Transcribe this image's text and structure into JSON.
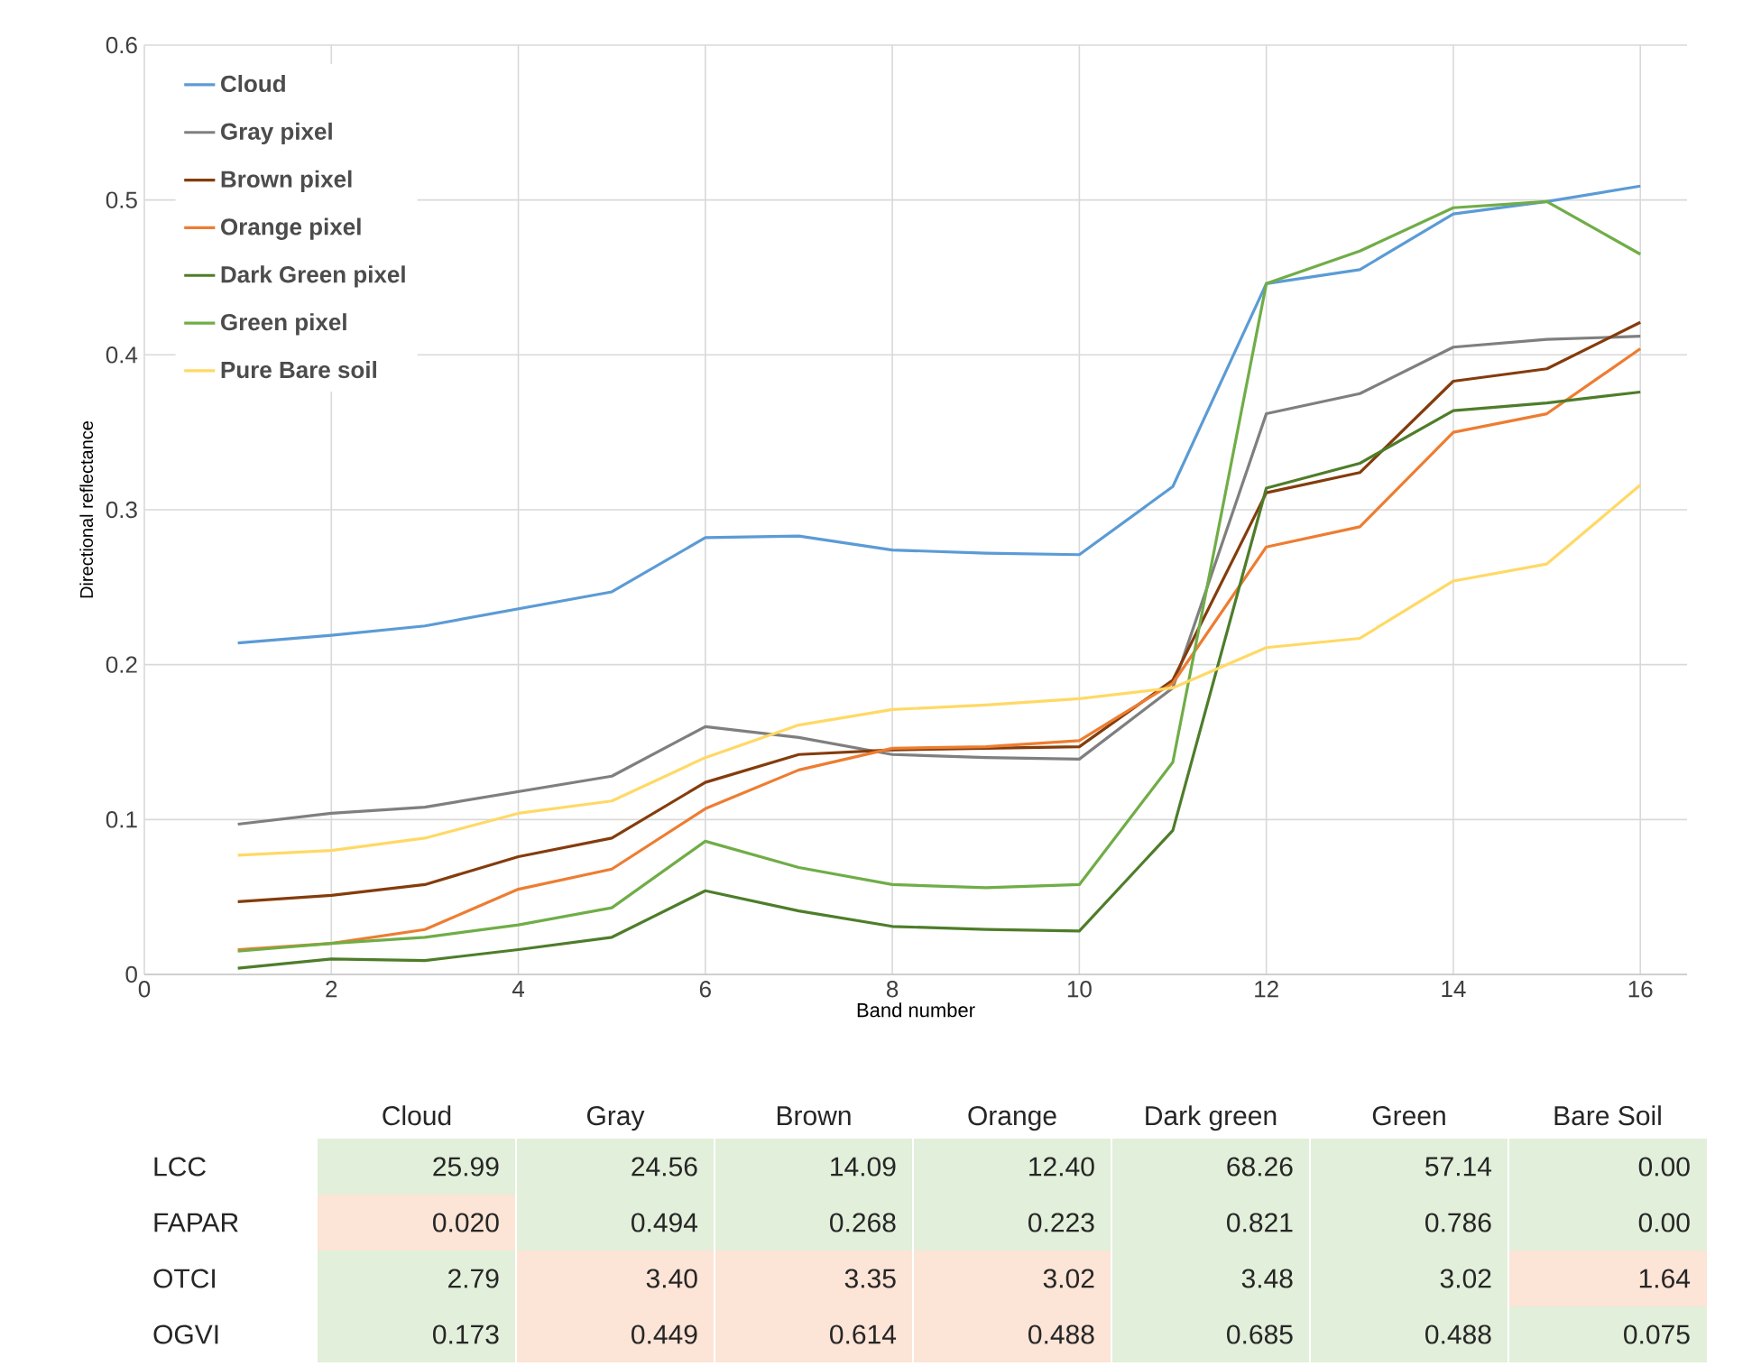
{
  "chart_data": [
    {
      "type": "line",
      "xlabel": "Band number",
      "ylabel": "Directional reflectance",
      "x": [
        1,
        2,
        3,
        4,
        5,
        6,
        7,
        8,
        9,
        10,
        11,
        12,
        13,
        14,
        15,
        16
      ],
      "xlim": [
        0,
        16.5
      ],
      "xticks": [
        0,
        2,
        4,
        6,
        8,
        10,
        12,
        14,
        16
      ],
      "ylim": [
        0,
        0.6
      ],
      "yticks": [
        0,
        0.1,
        0.2,
        0.3,
        0.4,
        0.5,
        0.6
      ],
      "grid": true,
      "legend": "top left",
      "marker": "none",
      "line_style": "solid",
      "series": [
        {
          "name": "Cloud",
          "color": "#5b9bd5",
          "values": [
            0.214,
            0.219,
            0.225,
            0.236,
            0.247,
            0.282,
            0.283,
            0.274,
            0.272,
            0.271,
            0.315,
            0.446,
            0.455,
            0.491,
            0.499,
            0.509
          ]
        },
        {
          "name": "Gray pixel",
          "color": "#7f7f7f",
          "values": [
            0.097,
            0.104,
            0.108,
            0.118,
            0.128,
            0.16,
            0.153,
            0.142,
            0.14,
            0.139,
            0.185,
            0.362,
            0.375,
            0.405,
            0.41,
            0.412
          ]
        },
        {
          "name": "Brown pixel",
          "color": "#843c0c",
          "values": [
            0.047,
            0.051,
            0.058,
            0.076,
            0.088,
            0.124,
            0.142,
            0.145,
            0.146,
            0.147,
            0.19,
            0.311,
            0.324,
            0.383,
            0.391,
            0.421
          ]
        },
        {
          "name": "Orange pixel",
          "color": "#ed7d31",
          "values": [
            0.016,
            0.02,
            0.029,
            0.055,
            0.068,
            0.107,
            0.132,
            0.146,
            0.147,
            0.151,
            0.188,
            0.276,
            0.289,
            0.35,
            0.362,
            0.404
          ]
        },
        {
          "name": "Dark Green pixel",
          "color": "#4e7d2a",
          "values": [
            0.004,
            0.01,
            0.009,
            0.016,
            0.024,
            0.054,
            0.041,
            0.031,
            0.029,
            0.028,
            0.093,
            0.314,
            0.33,
            0.364,
            0.369,
            0.376
          ]
        },
        {
          "name": "Green pixel",
          "color": "#70ad47",
          "values": [
            0.015,
            0.02,
            0.024,
            0.032,
            0.043,
            0.086,
            0.069,
            0.058,
            0.056,
            0.058,
            0.137,
            0.446,
            0.467,
            0.495,
            0.499,
            0.465
          ]
        },
        {
          "name": "Pure Bare soil",
          "color": "#ffd966",
          "values": [
            0.077,
            0.08,
            0.088,
            0.104,
            0.112,
            0.14,
            0.161,
            0.171,
            0.174,
            0.178,
            0.185,
            0.211,
            0.217,
            0.254,
            0.265,
            0.316
          ]
        }
      ]
    },
    {
      "type": "heatmap",
      "categories": [
        "Cloud",
        "Gray",
        "Brown",
        "Orange",
        "Dark green",
        "Green",
        "Bare Soil"
      ],
      "y_categories": [
        "LCC",
        "FAPAR",
        "OTCI",
        "OGVI"
      ],
      "cells": [
        [
          25.99,
          24.56,
          14.09,
          12.4,
          68.26,
          57.14,
          0.0
        ],
        [
          0.02,
          0.494,
          0.268,
          0.223,
          0.821,
          0.786,
          0.0
        ],
        [
          2.79,
          3.4,
          3.35,
          3.02,
          3.48,
          3.02,
          1.64
        ],
        [
          0.173,
          0.449,
          0.614,
          0.488,
          0.685,
          0.488,
          0.075
        ]
      ],
      "cell_labels": [
        [
          "25.99",
          "24.56",
          "14.09",
          "12.40",
          "68.26",
          "57.14",
          "0.00"
        ],
        [
          "0.020",
          "0.494",
          "0.268",
          "0.223",
          "0.821",
          "0.786",
          "0.00"
        ],
        [
          "2.79",
          "3.40",
          "3.35",
          "3.02",
          "3.48",
          "3.02",
          "1.64"
        ],
        [
          "0.173",
          "0.449",
          "0.614",
          "0.488",
          "0.685",
          "0.488",
          "0.075"
        ]
      ],
      "colors": [
        [
          "#e2efda",
          "#e2efda",
          "#e2efda",
          "#e2efda",
          "#e2efda",
          "#e2efda",
          "#e2efda"
        ],
        [
          "#fce4d6",
          "#e2efda",
          "#e2efda",
          "#e2efda",
          "#e2efda",
          "#e2efda",
          "#e2efda"
        ],
        [
          "#e2efda",
          "#fce4d6",
          "#fce4d6",
          "#fce4d6",
          "#e2efda",
          "#e2efda",
          "#fce4d6"
        ],
        [
          "#e2efda",
          "#fce4d6",
          "#fce4d6",
          "#fce4d6",
          "#e2efda",
          "#e2efda",
          "#e2efda"
        ]
      ]
    }
  ]
}
